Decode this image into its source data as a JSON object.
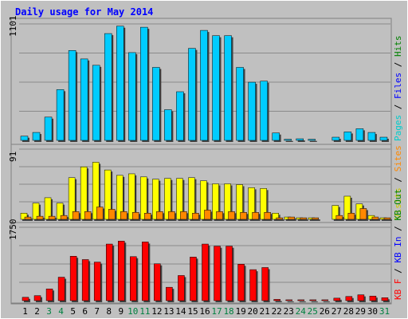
{
  "chart_data": {
    "type": "bar",
    "title": "Daily usage for May 2014",
    "categories": [
      "1",
      "2",
      "3",
      "4",
      "5",
      "6",
      "7",
      "8",
      "9",
      "10",
      "11",
      "12",
      "13",
      "14",
      "15",
      "16",
      "17",
      "18",
      "19",
      "20",
      "21",
      "22",
      "23",
      "24",
      "25",
      "26",
      "27",
      "28",
      "29",
      "30",
      "31"
    ],
    "weekend_days": [
      "3",
      "4",
      "10",
      "11",
      "17",
      "18",
      "24",
      "25",
      "31"
    ],
    "panels": [
      {
        "name": "top",
        "max_label": "1101",
        "ylim": [
          0,
          1101
        ],
        "grid": true,
        "legend": [
          "Pages",
          "Files",
          "Hits"
        ],
        "series": [
          {
            "name": "Pages",
            "color": "#00cccc",
            "values": [
              0,
              0,
              0,
              0,
              0,
              0,
              0,
              0,
              0,
              0,
              0,
              0,
              0,
              0,
              0,
              0,
              0,
              0,
              0,
              0,
              0,
              0,
              0,
              0,
              0,
              0,
              0,
              0,
              0,
              0,
              0
            ]
          },
          {
            "name": "Files",
            "color": "#0000ff",
            "values": [
              0,
              0,
              0,
              0,
              0,
              0,
              0,
              0,
              0,
              0,
              0,
              0,
              0,
              0,
              0,
              0,
              0,
              0,
              0,
              0,
              0,
              0,
              0,
              0,
              0,
              0,
              0,
              0,
              0,
              0,
              0
            ]
          },
          {
            "name": "Hits",
            "color": "#00ccff",
            "values": [
              40,
              75,
              220,
              480,
              850,
              770,
              710,
              1010,
              1080,
              830,
              1070,
              690,
              290,
              460,
              870,
              1040,
              990,
              990,
              690,
              550,
              560,
              70,
              10,
              15,
              10,
              0,
              30,
              80,
              110,
              75,
              30
            ]
          }
        ]
      },
      {
        "name": "middle",
        "max_label": "91",
        "ylim": [
          0,
          91
        ],
        "grid": true,
        "legend": [
          "Visits",
          "Sites"
        ],
        "series": [
          {
            "name": "Visits",
            "color": "#ffff00",
            "values": [
              8,
              21,
              28,
              21,
              54,
              68,
              74,
              64,
              57,
              59,
              55,
              52,
              53,
              53,
              54,
              50,
              46,
              46,
              45,
              41,
              40,
              8,
              3,
              2,
              2,
              0,
              18,
              30,
              20,
              5,
              2
            ]
          },
          {
            "name": "Sites",
            "color": "#ff8800",
            "values": [
              3,
              4,
              4,
              5,
              10,
              10,
              16,
              13,
              10,
              9,
              8,
              10,
              10,
              10,
              8,
              12,
              10,
              10,
              9,
              9,
              9,
              2,
              3,
              2,
              2,
              0,
              5,
              8,
              14,
              3,
              2
            ]
          }
        ]
      },
      {
        "name": "bottom",
        "max_label": "1750",
        "ylim": [
          0,
          1750
        ],
        "grid": true,
        "legend": [
          "KB F",
          "KB In",
          "KB Out"
        ],
        "series": [
          {
            "name": "KB F",
            "color": "#ff0000",
            "values": [
              80,
              120,
              280,
              560,
              1060,
              980,
              920,
              1350,
              1420,
              1050,
              1400,
              880,
              320,
              600,
              1040,
              1350,
              1300,
              1300,
              870,
              740,
              790,
              30,
              20,
              20,
              20,
              20,
              60,
              100,
              140,
              110,
              70
            ]
          }
        ]
      }
    ]
  }
}
